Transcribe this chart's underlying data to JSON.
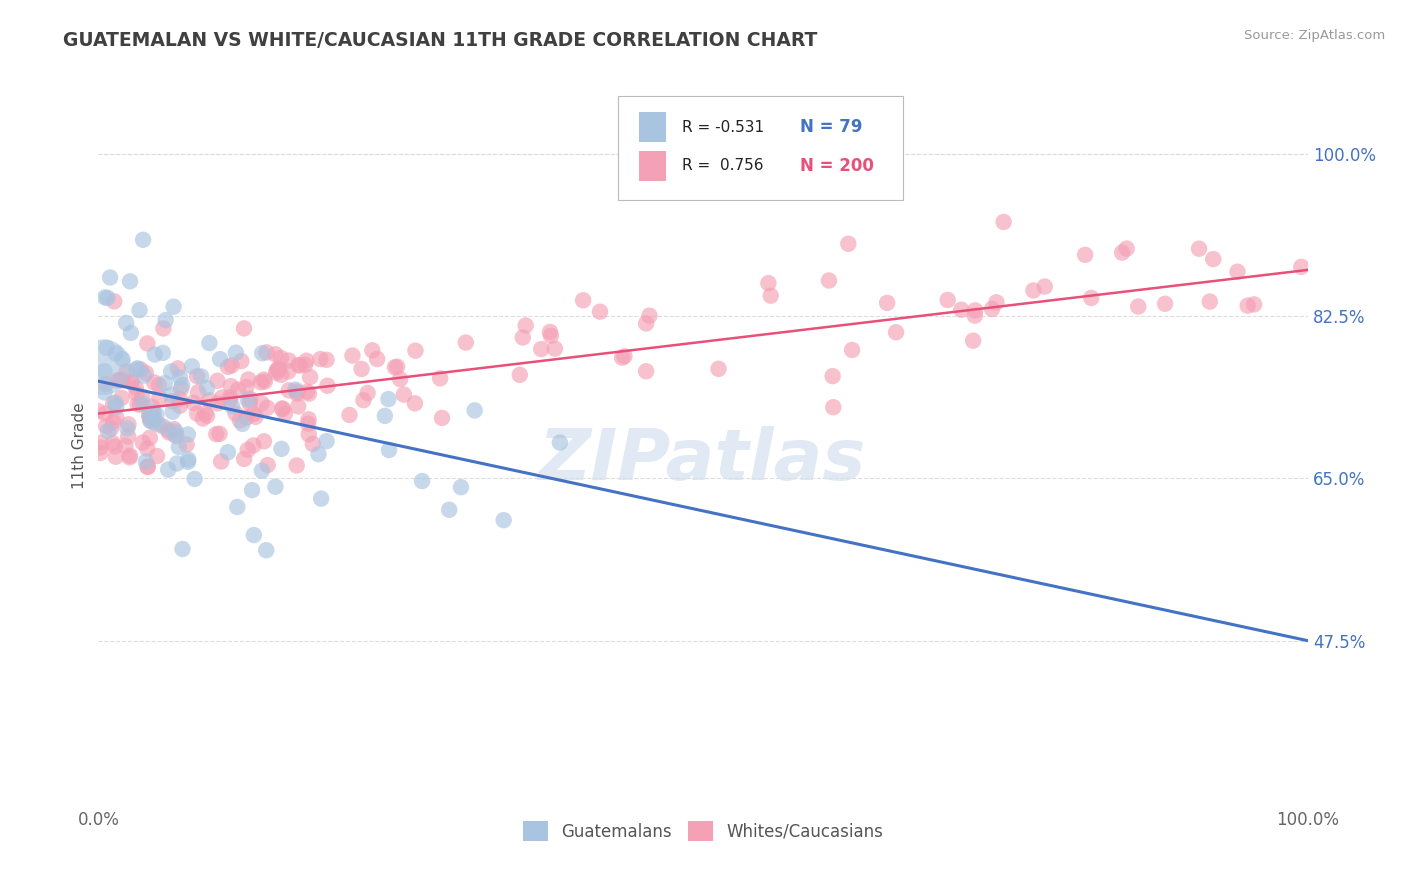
{
  "title": "GUATEMALAN VS WHITE/CAUCASIAN 11TH GRADE CORRELATION CHART",
  "source": "Source: ZipAtlas.com",
  "ylabel": "11th Grade",
  "legend_labels": [
    "Guatemalans",
    "Whites/Caucasians"
  ],
  "blue_color": "#a8c4e0",
  "pink_color": "#f4a0b5",
  "blue_line_color": "#4472c4",
  "pink_line_color": "#e8507a",
  "blue_R": -0.531,
  "blue_N": 79,
  "pink_R": 0.756,
  "pink_N": 200,
  "title_color": "#404040",
  "source_color": "#999999",
  "right_tick_color": "#4472c4",
  "watermark_color": "#c8d8ec",
  "background_color": "#ffffff",
  "grid_color": "#dddddd",
  "xlim": [
    0.0,
    1.0
  ],
  "ylim": [
    0.3,
    1.07
  ],
  "right_yticks": [
    0.475,
    0.65,
    0.825,
    1.0
  ],
  "right_yticklabels": [
    "47.5%",
    "65.0%",
    "82.5%",
    "100.0%"
  ],
  "blue_line_x0": 0.0,
  "blue_line_y0": 0.755,
  "blue_line_x1": 1.0,
  "blue_line_y1": 0.475,
  "pink_line_x0": 0.0,
  "pink_line_y0": 0.72,
  "pink_line_x1": 1.0,
  "pink_line_y1": 0.875
}
